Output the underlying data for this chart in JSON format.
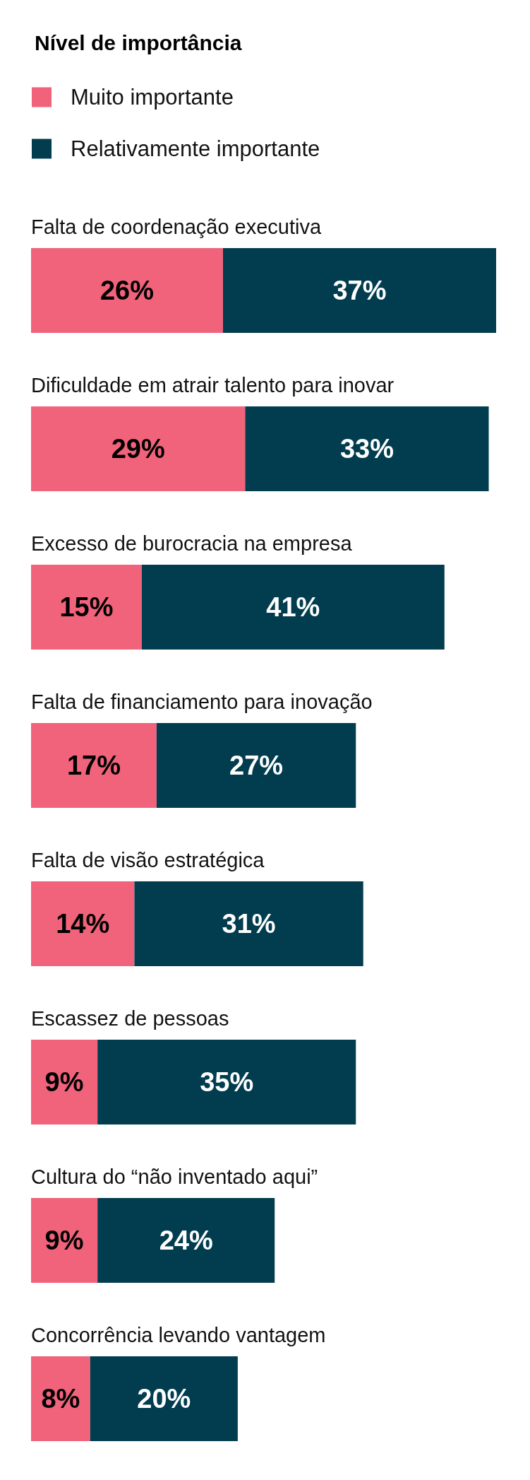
{
  "chart_data": {
    "type": "bar",
    "orientation": "horizontal",
    "stacked": true,
    "legend": "top left",
    "legend_title": "Nível de importância",
    "categories": [
      "Falta de coordenação executiva",
      "Dificuldade em atrair talento para inovar",
      "Excesso de burocracia na empresa",
      "Falta de financiamento para inovação",
      "Falta de visão estratégica",
      "Escassez de pessoas",
      "Cultura do “não inventado aqui”",
      "Concorrência levando vantagem"
    ],
    "series": [
      {
        "name": "Muito importante",
        "color": "#f0637a",
        "values": [
          26,
          29,
          15,
          17,
          14,
          9,
          9,
          8
        ],
        "value_labels": [
          "26%",
          "29%",
          "15%",
          "17%",
          "14%",
          "9%",
          "9%",
          "8%"
        ]
      },
      {
        "name": "Relativamente importante",
        "color": "#023d4f",
        "values": [
          37,
          33,
          41,
          27,
          31,
          35,
          24,
          20
        ],
        "value_labels": [
          "37%",
          "33%",
          "41%",
          "27%",
          "31%",
          "35%",
          "24%",
          "20%"
        ]
      }
    ]
  }
}
